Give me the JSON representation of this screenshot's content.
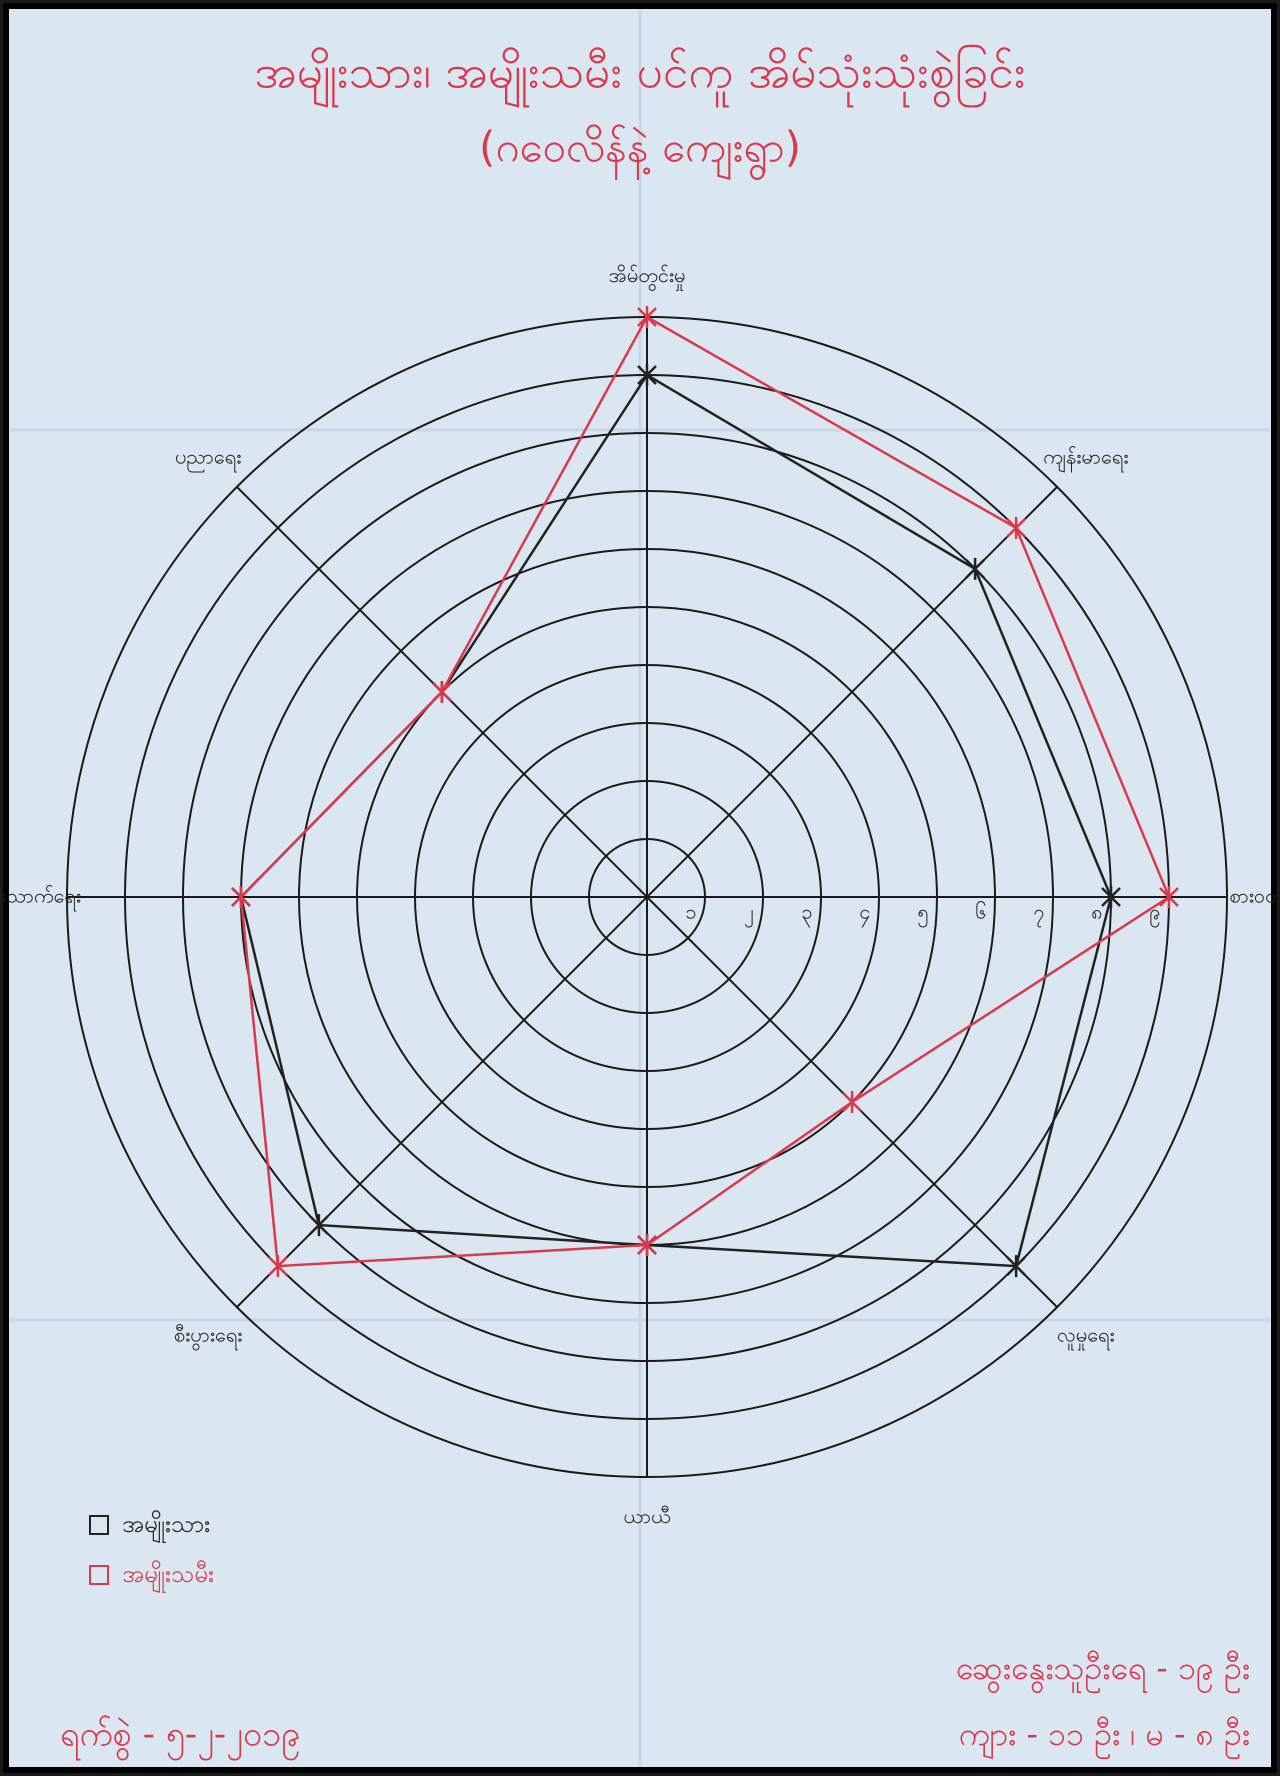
{
  "chart_data": {
    "type": "radar",
    "title": "အမျိုးသား၊ အမျိုးသမီး ပင်ကူ အိမ်သုံးသုံးစွဲခြင်း",
    "subtitle": "(ဂဝေလိန်နဲ့ ကျေးရွာ)",
    "categories": [
      "အိမ်တွင်းမှု",
      "ကျန်းမာရေး",
      "စားဝတ်နေ",
      "လူမှုရေး",
      "ယာယီ",
      "စီးပွားရေး",
      "စားသောက်ရေး",
      "ပညာရေး"
    ],
    "series": [
      {
        "name": "အမျိုးသား",
        "color": "#222222",
        "values": [
          9,
          8,
          8,
          9,
          6,
          8,
          7,
          5
        ]
      },
      {
        "name": "အမျိုးသမီး",
        "color": "#d93a4a",
        "values": [
          10,
          9,
          9,
          5,
          6,
          9,
          7,
          5
        ]
      }
    ],
    "rlim": [
      0,
      10
    ],
    "rticks": [
      {
        "value": 1,
        "label": "၁"
      },
      {
        "value": 2,
        "label": "၂"
      },
      {
        "value": 3,
        "label": "၃"
      },
      {
        "value": 4,
        "label": "၄"
      },
      {
        "value": 5,
        "label": "၅"
      },
      {
        "value": 6,
        "label": "၆"
      },
      {
        "value": 7,
        "label": "၇"
      },
      {
        "value": 8,
        "label": "၈"
      },
      {
        "value": 9,
        "label": "၉"
      }
    ],
    "legend": "bottom-left"
  },
  "notes": {
    "date": "ရက်စွဲ - ၅-၂-၂၀၁၉",
    "participants": "ဆွေးနွေးသူဦးရေ - ၁၉ ဦး",
    "gender": "ကျား - ၁၁ ဦး ၊ မ - ၈ ဦး"
  }
}
